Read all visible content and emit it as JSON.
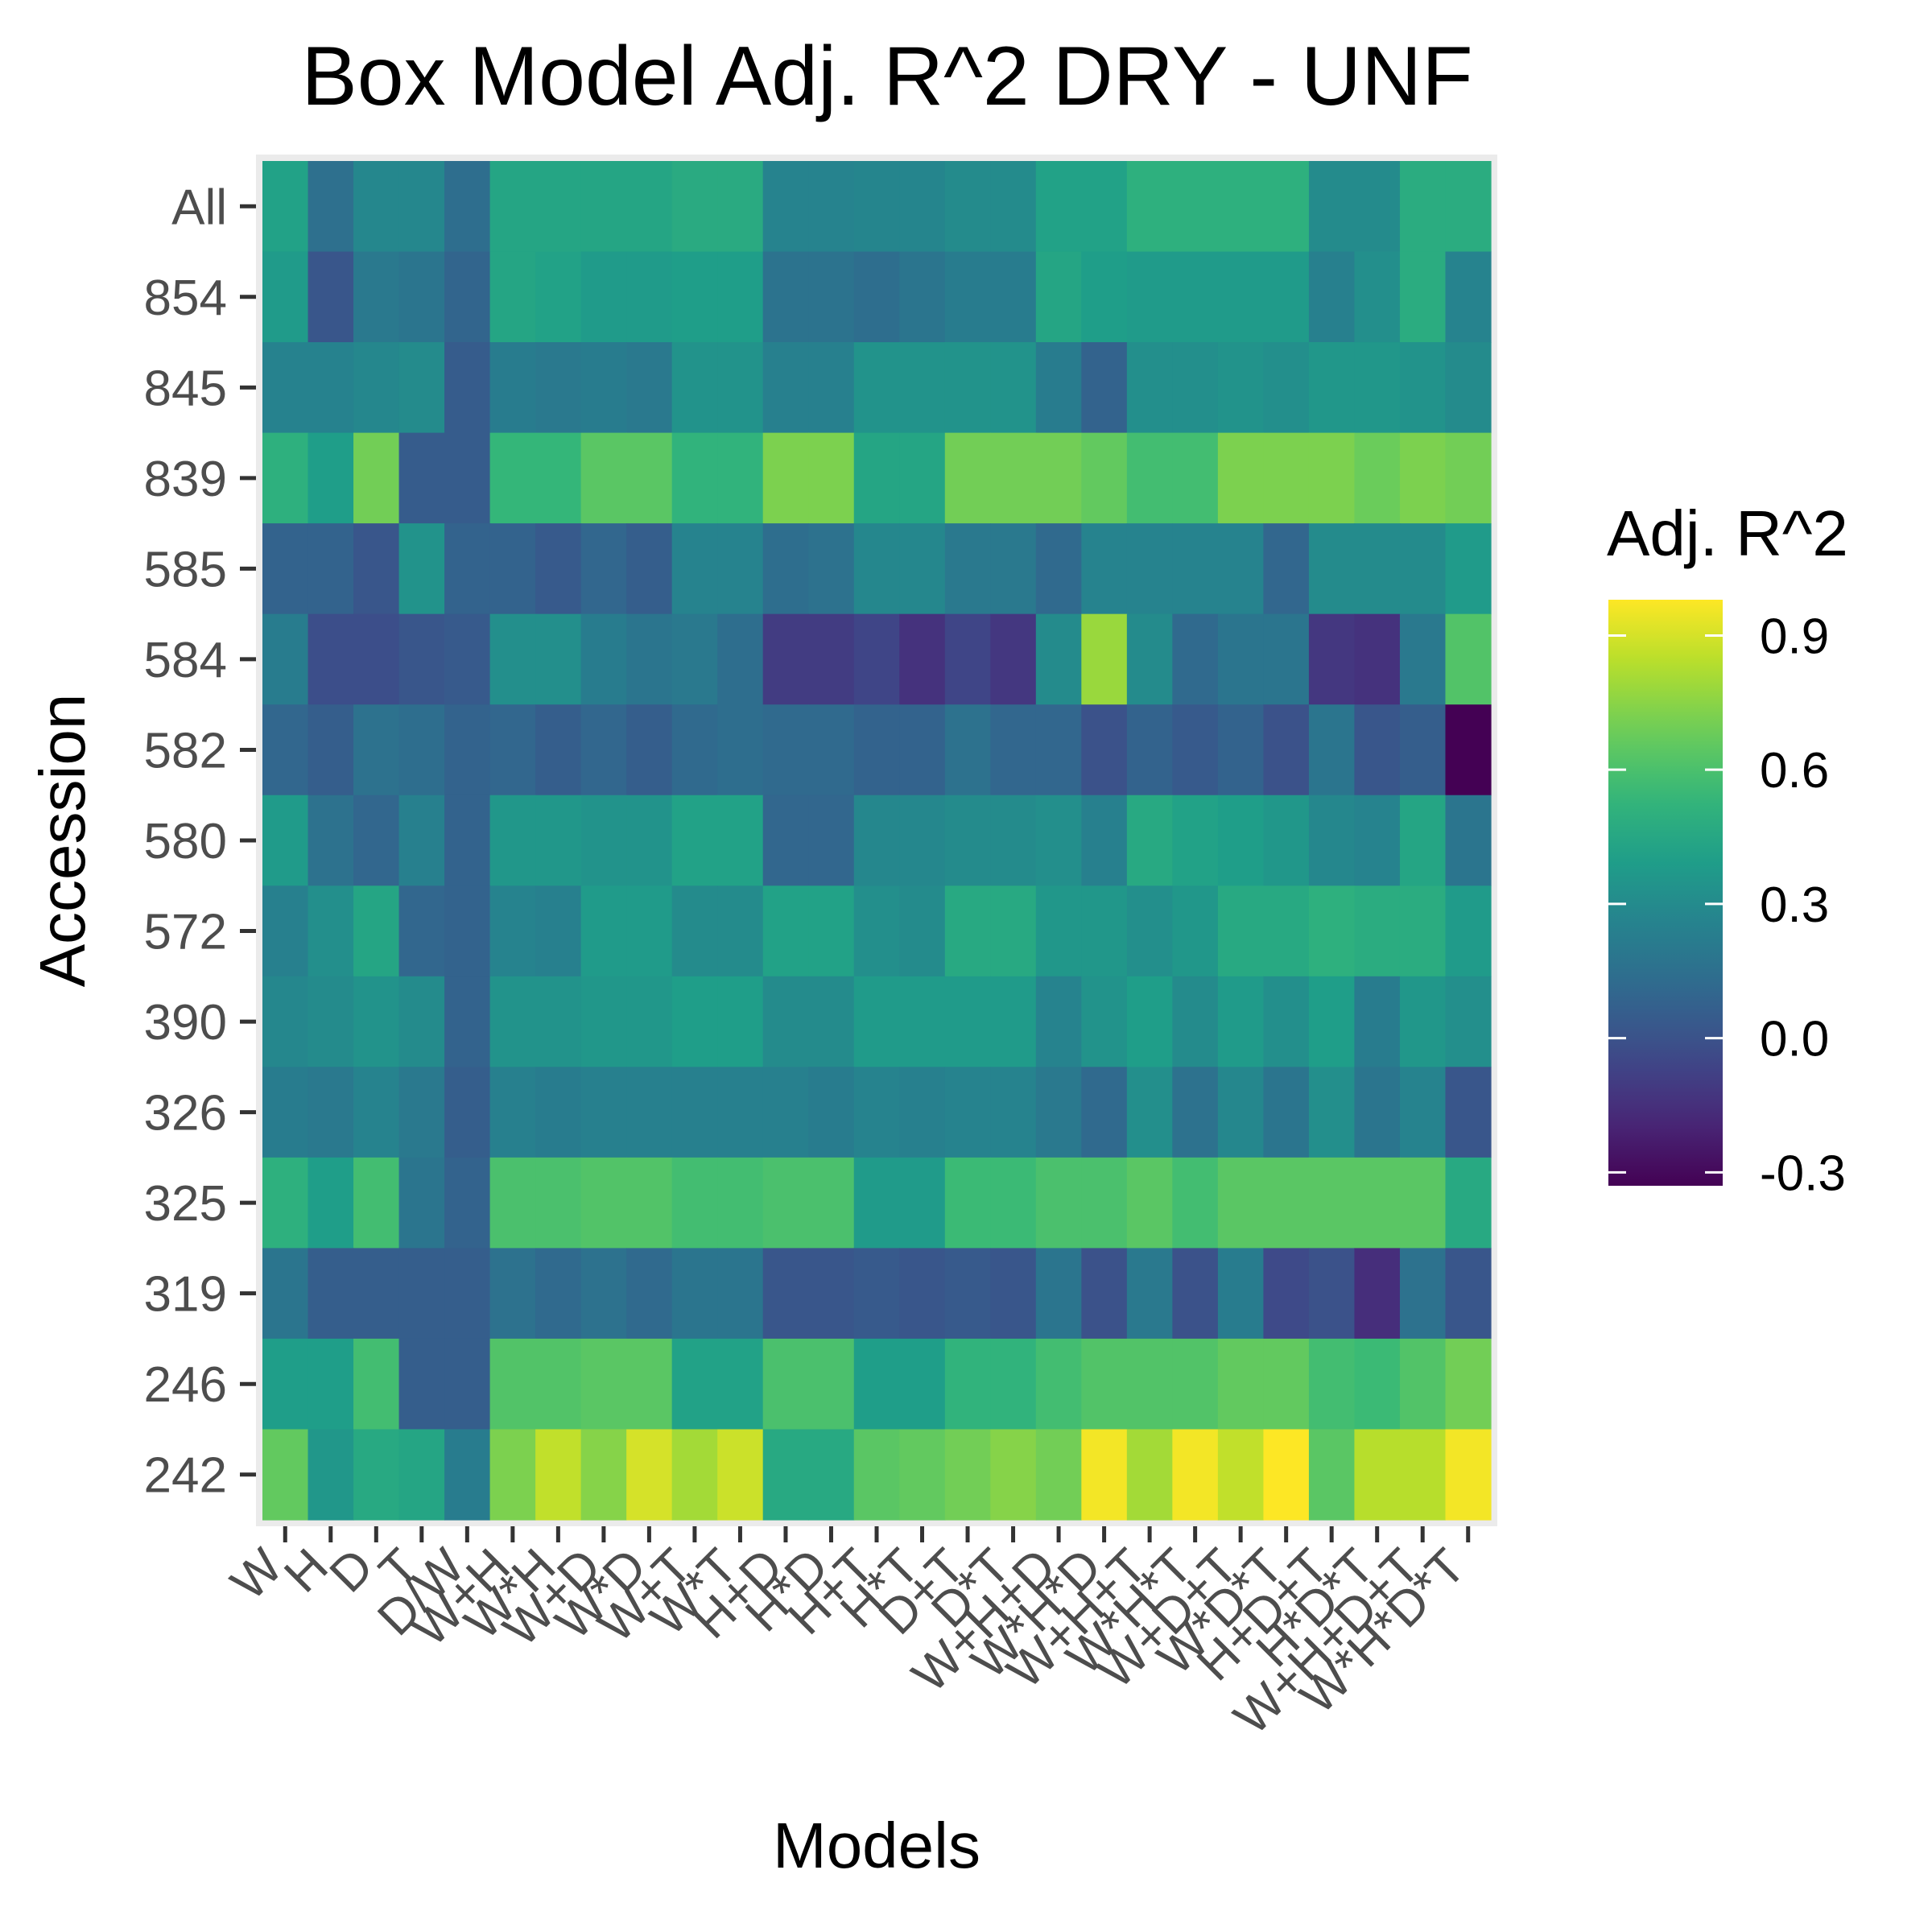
{
  "chart_data": {
    "type": "heatmap",
    "title": "Box Model Adj. R^2 DRY - UNF",
    "xlabel": "Models",
    "ylabel": "Accession",
    "x": [
      "W",
      "H",
      "D",
      "T",
      "D/W",
      "W+H",
      "W*H",
      "W+D",
      "W*D",
      "W+T",
      "W*T",
      "H+D",
      "H*D",
      "H+T",
      "H*T",
      "D+T",
      "D*T",
      "W+H+D",
      "W*H*D",
      "W+H+T",
      "W*H*T",
      "W+D+T",
      "W*D*T",
      "H+D+T",
      "H*D*T",
      "W+H+D+T",
      "W*H*D*T"
    ],
    "y": [
      "All",
      "854",
      "845",
      "839",
      "585",
      "584",
      "582",
      "580",
      "572",
      "390",
      "326",
      "325",
      "319",
      "246",
      "242"
    ],
    "legend": {
      "title": "Adj. R^2",
      "position": "right",
      "ticks": [
        0.9,
        0.6,
        0.3,
        0.0,
        -0.3
      ],
      "tick_labels": [
        "0.9",
        "0.6",
        "0.3",
        "0.0",
        "-0.3"
      ],
      "range": [
        -0.33,
        0.98
      ],
      "colormap": "viridis"
    },
    "values": [
      [
        0.42,
        0.15,
        0.28,
        0.28,
        0.14,
        0.44,
        0.44,
        0.44,
        0.44,
        0.47,
        0.47,
        0.26,
        0.26,
        0.27,
        0.27,
        0.3,
        0.3,
        0.42,
        0.42,
        0.5,
        0.5,
        0.5,
        0.5,
        0.3,
        0.3,
        0.48,
        0.48
      ],
      [
        0.38,
        0.02,
        0.2,
        0.18,
        0.09,
        0.44,
        0.42,
        0.38,
        0.38,
        0.4,
        0.4,
        0.17,
        0.17,
        0.14,
        0.18,
        0.22,
        0.22,
        0.44,
        0.4,
        0.38,
        0.38,
        0.38,
        0.38,
        0.24,
        0.32,
        0.48,
        0.26
      ],
      [
        0.25,
        0.25,
        0.28,
        0.3,
        0.05,
        0.22,
        0.2,
        0.22,
        0.2,
        0.34,
        0.34,
        0.24,
        0.24,
        0.34,
        0.34,
        0.34,
        0.34,
        0.22,
        0.08,
        0.32,
        0.32,
        0.34,
        0.32,
        0.36,
        0.36,
        0.34,
        0.3
      ],
      [
        0.5,
        0.4,
        0.7,
        0.05,
        0.05,
        0.54,
        0.54,
        0.64,
        0.64,
        0.52,
        0.52,
        0.72,
        0.72,
        0.44,
        0.44,
        0.7,
        0.7,
        0.7,
        0.66,
        0.58,
        0.58,
        0.72,
        0.72,
        0.72,
        0.68,
        0.72,
        0.7
      ],
      [
        0.08,
        0.08,
        0.02,
        0.34,
        0.08,
        0.08,
        0.04,
        0.1,
        0.06,
        0.26,
        0.26,
        0.14,
        0.16,
        0.28,
        0.28,
        0.2,
        0.2,
        0.12,
        0.26,
        0.26,
        0.26,
        0.26,
        0.1,
        0.3,
        0.3,
        0.3,
        0.38
      ],
      [
        0.22,
        -0.02,
        -0.02,
        0.02,
        0.04,
        0.32,
        0.32,
        0.22,
        0.18,
        0.2,
        0.14,
        -0.1,
        -0.1,
        -0.06,
        -0.14,
        -0.06,
        -0.12,
        0.3,
        0.78,
        0.3,
        0.12,
        0.18,
        0.18,
        -0.12,
        -0.14,
        0.2,
        0.62
      ],
      [
        0.1,
        0.06,
        0.16,
        0.14,
        0.08,
        0.1,
        0.06,
        0.1,
        0.06,
        0.12,
        0.14,
        0.12,
        0.12,
        0.08,
        0.08,
        0.16,
        0.1,
        0.1,
        0.0,
        0.08,
        0.04,
        0.08,
        0.0,
        0.18,
        0.02,
        0.06,
        -0.33
      ],
      [
        0.38,
        0.16,
        0.1,
        0.24,
        0.08,
        0.36,
        0.36,
        0.34,
        0.34,
        0.42,
        0.42,
        0.1,
        0.1,
        0.28,
        0.28,
        0.3,
        0.3,
        0.32,
        0.24,
        0.46,
        0.42,
        0.4,
        0.36,
        0.28,
        0.26,
        0.44,
        0.18
      ],
      [
        0.24,
        0.32,
        0.44,
        0.1,
        0.08,
        0.26,
        0.24,
        0.38,
        0.38,
        0.3,
        0.3,
        0.42,
        0.42,
        0.32,
        0.3,
        0.46,
        0.46,
        0.36,
        0.36,
        0.32,
        0.36,
        0.46,
        0.46,
        0.5,
        0.48,
        0.48,
        0.38
      ],
      [
        0.28,
        0.3,
        0.34,
        0.3,
        0.08,
        0.34,
        0.34,
        0.36,
        0.36,
        0.4,
        0.4,
        0.3,
        0.3,
        0.38,
        0.38,
        0.38,
        0.38,
        0.26,
        0.34,
        0.4,
        0.3,
        0.38,
        0.32,
        0.4,
        0.22,
        0.36,
        0.32
      ],
      [
        0.22,
        0.2,
        0.26,
        0.2,
        0.06,
        0.24,
        0.22,
        0.24,
        0.24,
        0.24,
        0.24,
        0.24,
        0.22,
        0.26,
        0.24,
        0.26,
        0.26,
        0.2,
        0.12,
        0.32,
        0.16,
        0.28,
        0.18,
        0.32,
        0.18,
        0.26,
        0.02
      ],
      [
        0.5,
        0.4,
        0.58,
        0.18,
        0.08,
        0.6,
        0.6,
        0.62,
        0.62,
        0.58,
        0.58,
        0.6,
        0.6,
        0.38,
        0.38,
        0.56,
        0.56,
        0.6,
        0.6,
        0.64,
        0.58,
        0.64,
        0.64,
        0.64,
        0.64,
        0.64,
        0.46
      ],
      [
        0.18,
        0.06,
        0.06,
        0.06,
        0.06,
        0.16,
        0.12,
        0.16,
        0.12,
        0.18,
        0.18,
        0.02,
        0.02,
        0.04,
        0.02,
        0.04,
        0.02,
        0.18,
        0.0,
        0.2,
        0.0,
        0.22,
        -0.04,
        0.0,
        -0.16,
        0.16,
        0.02
      ],
      [
        0.4,
        0.4,
        0.58,
        0.06,
        0.06,
        0.62,
        0.62,
        0.64,
        0.64,
        0.42,
        0.42,
        0.6,
        0.6,
        0.4,
        0.4,
        0.52,
        0.52,
        0.58,
        0.62,
        0.62,
        0.62,
        0.66,
        0.66,
        0.58,
        0.56,
        0.62,
        0.7
      ],
      [
        0.66,
        0.36,
        0.46,
        0.44,
        0.22,
        0.72,
        0.86,
        0.74,
        0.9,
        0.8,
        0.88,
        0.46,
        0.46,
        0.64,
        0.66,
        0.7,
        0.74,
        0.7,
        0.96,
        0.8,
        0.96,
        0.86,
        0.98,
        0.64,
        0.84,
        0.84,
        0.96
      ]
    ]
  }
}
